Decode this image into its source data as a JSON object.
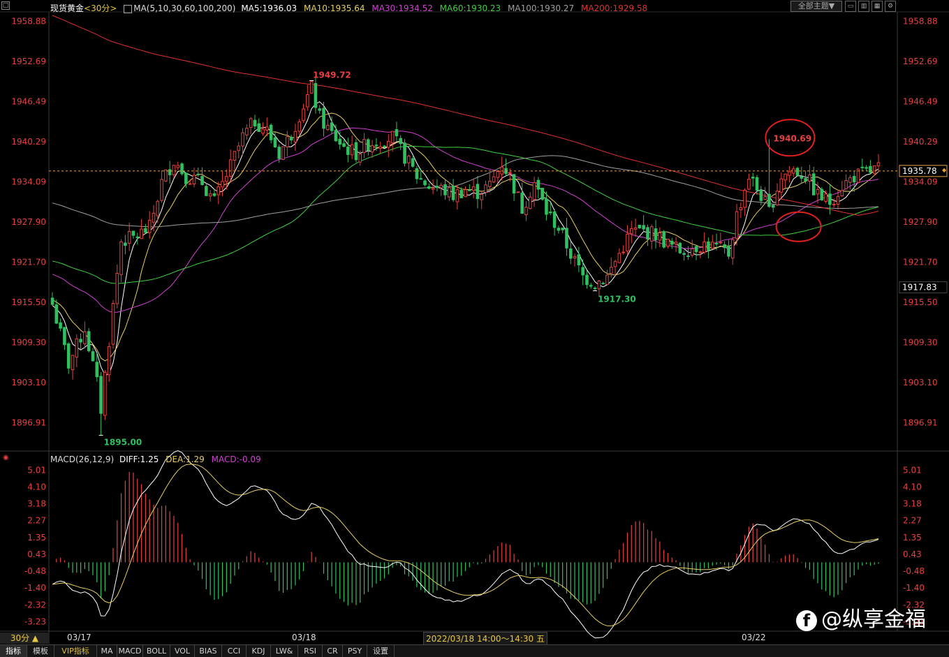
{
  "header": {
    "symbol": "现货黄金",
    "period": "<30分>",
    "ma_params": "MA(5,10,30,60,100,200)",
    "ma_values": [
      {
        "label": "MA5:1936.03",
        "color": "#ffffff"
      },
      {
        "label": "MA10:1935.64",
        "color": "#e8d060"
      },
      {
        "label": "MA30:1934.52",
        "color": "#d040d0"
      },
      {
        "label": "MA60:1930.23",
        "color": "#40d040"
      },
      {
        "label": "MA100:1930.27",
        "color": "#a0a0a0"
      },
      {
        "label": "MA200:1929.58",
        "color": "#e03030"
      }
    ],
    "theme_button": "全部主题▼"
  },
  "price_axis": [
    "1958.88",
    "1952.69",
    "1946.49",
    "1940.29",
    "1934.09",
    "1927.90",
    "1921.70",
    "1915.50",
    "1909.30",
    "1903.10",
    "1896.91"
  ],
  "right_markers": {
    "current": "1935.78",
    "level2": "1917.83"
  },
  "annotations": [
    "1949.72",
    "1940.69",
    "1917.30",
    "1895.00"
  ],
  "macd": {
    "title": "MACD(26,12,9)",
    "diff": "DIFF:1.25",
    "dea": "DEA:1.29",
    "macd": "MACD:-0.09",
    "axis": [
      "5.01",
      "4.10",
      "3.18",
      "2.27",
      "1.35",
      "0.43",
      "-0.48",
      "-1.40",
      "-2.32",
      "-3.23"
    ]
  },
  "time_axis": {
    "labels": [
      "03/17",
      "03/18",
      "03/22"
    ],
    "cursor_time": "2022/03/18 14:00～14:30 五"
  },
  "period_button": "30分 ▲",
  "tabs": [
    "指标",
    "模板",
    "VIP指标",
    "MA",
    "MACD",
    "BOLL",
    "VOL",
    "BIAS",
    "CCI",
    "KDJ",
    "LW&",
    "RSI",
    "CR",
    "PSY",
    "设置"
  ],
  "watermark": "@纵享金福",
  "colors": {
    "up": "#e84040",
    "down": "#30c060",
    "dash": "#e8a040",
    "circle": "#e02020",
    "axis_text": "#e84040"
  },
  "chart_data": {
    "type": "candlestick",
    "symbol": "现货黄金",
    "timeframe": "30分",
    "ylim": [
      1893.0,
      1960.0
    ],
    "current_price": 1935.78,
    "high_annotation": 1949.72,
    "low_annotation": 1895.0,
    "local_low": 1917.3,
    "local_high": 1940.69,
    "date_labels": [
      "03/17",
      "03/18",
      "03/22"
    ],
    "close_path": [
      [
        0,
        1915.2
      ],
      [
        4,
        1906.0
      ],
      [
        8,
        1911.5
      ],
      [
        11,
        1903.0
      ],
      [
        12,
        1899.0
      ],
      [
        15,
        1915.0
      ],
      [
        17,
        1925.0
      ],
      [
        20,
        1925.5
      ],
      [
        24,
        1927.0
      ],
      [
        27,
        1934.0
      ],
      [
        30,
        1937.5
      ],
      [
        33,
        1935.0
      ],
      [
        37,
        1934.0
      ],
      [
        40,
        1931.0
      ],
      [
        44,
        1936.5
      ],
      [
        47,
        1941.0
      ],
      [
        50,
        1943.5
      ],
      [
        53,
        1942.0
      ],
      [
        56,
        1938.5
      ],
      [
        59,
        1941.5
      ],
      [
        62,
        1946.0
      ],
      [
        64,
        1948.5
      ],
      [
        66,
        1944.0
      ],
      [
        69,
        1941.5
      ],
      [
        72,
        1939.5
      ],
      [
        75,
        1938.5
      ],
      [
        78,
        1940.0
      ],
      [
        81,
        1940.5
      ],
      [
        84,
        1941.0
      ],
      [
        87,
        1938.0
      ],
      [
        90,
        1935.0
      ],
      [
        93,
        1933.5
      ],
      [
        96,
        1933.0
      ],
      [
        99,
        1932.0
      ],
      [
        102,
        1933.0
      ],
      [
        105,
        1932.5
      ],
      [
        108,
        1933.5
      ],
      [
        111,
        1937.0
      ],
      [
        113,
        1935.0
      ],
      [
        116,
        1930.0
      ],
      [
        119,
        1934.0
      ],
      [
        122,
        1929.5
      ],
      [
        125,
        1927.0
      ],
      [
        128,
        1923.0
      ],
      [
        131,
        1919.5
      ],
      [
        134,
        1918.5
      ],
      [
        137,
        1919.5
      ],
      [
        140,
        1923.0
      ],
      [
        143,
        1926.5
      ],
      [
        146,
        1926.5
      ],
      [
        149,
        1926.0
      ],
      [
        152,
        1924.5
      ],
      [
        155,
        1923.5
      ],
      [
        158,
        1924.0
      ],
      [
        161,
        1924.5
      ],
      [
        164,
        1924.0
      ],
      [
        167,
        1923.0
      ],
      [
        169,
        1929.0
      ],
      [
        172,
        1935.0
      ],
      [
        175,
        1932.0
      ],
      [
        177,
        1929.5
      ],
      [
        180,
        1935.0
      ],
      [
        183,
        1936.0
      ],
      [
        186,
        1935.0
      ],
      [
        189,
        1932.0
      ],
      [
        192,
        1931.0
      ],
      [
        195,
        1933.5
      ],
      [
        198,
        1935.0
      ],
      [
        201,
        1935.5
      ],
      [
        204,
        1936.2
      ]
    ],
    "series": [
      {
        "name": "MA5",
        "value": 1936.03,
        "color": "#ffffff"
      },
      {
        "name": "MA10",
        "value": 1935.64,
        "color": "#e8d060"
      },
      {
        "name": "MA30",
        "value": 1934.52,
        "color": "#d040d0"
      },
      {
        "name": "MA60",
        "value": 1930.23,
        "color": "#40d040"
      },
      {
        "name": "MA100",
        "value": 1930.27,
        "color": "#a0a0a0"
      },
      {
        "name": "MA200",
        "value": 1929.58,
        "color": "#e03030"
      }
    ],
    "macd": {
      "DIFF": 1.25,
      "DEA": 1.29,
      "MACD": -0.09,
      "ylim": [
        -3.6,
        5.3
      ]
    }
  }
}
